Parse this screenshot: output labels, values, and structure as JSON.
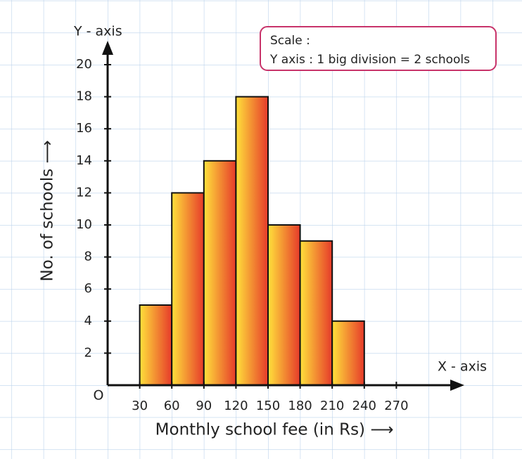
{
  "chart_data": {
    "type": "histogram",
    "y_axis_name": "Y - axis",
    "x_axis_name": "X - axis",
    "origin_label": "O",
    "ylabel": "No. of schools ⟶",
    "xlabel": "Monthly school fee (in Rs) ⟶",
    "scale_title": "Scale :",
    "scale_text": "Y axis : 1 big division = 2 schools",
    "bins": [
      30,
      60,
      90,
      120,
      150,
      180,
      210,
      240
    ],
    "values": [
      5,
      12,
      14,
      18,
      10,
      9,
      4
    ],
    "color_left": "#ffe13b",
    "color_right": "#e63a2a",
    "xlim": [
      0,
      270
    ],
    "ylim": [
      0,
      20
    ],
    "xticks": [
      30,
      60,
      90,
      120,
      150,
      180,
      210,
      240,
      270
    ],
    "yticks": [
      2,
      4,
      6,
      8,
      10,
      12,
      14,
      16,
      18,
      20
    ]
  }
}
